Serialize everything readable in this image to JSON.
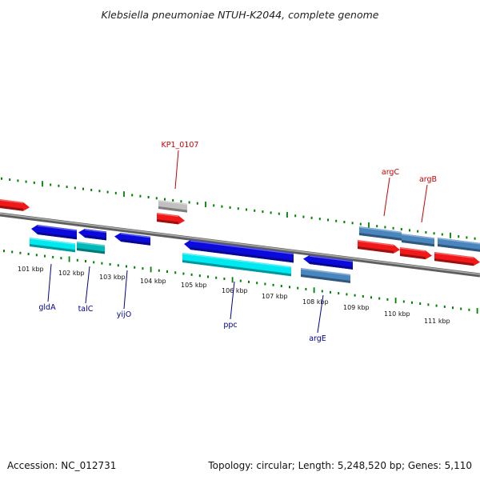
{
  "title": "Klebsiella pneumoniae NTUH-K2044, complete genome",
  "footer": {
    "accession": "Accession: NC_012731",
    "summary": "Topology: circular; Length: 5,248,520 bp; Genes: 5,110"
  },
  "colors": {
    "backbone": "#808080",
    "ticks": "#008000",
    "gene_blue": "#0a0adc",
    "gene_cyan": "#00e8f0",
    "gene_teal": "#00b8b8",
    "gene_steel": "#4a86be",
    "gene_red": "#f01818",
    "gene_gray": "#c0c0c0",
    "label_blue": "#00008b",
    "label_red": "#cc0000"
  },
  "kbp_labels": [
    "101 kbp",
    "102 kbp",
    "103 kbp",
    "104 kbp",
    "105 kbp",
    "106 kbp",
    "107 kbp",
    "108 kbp",
    "109 kbp",
    "110 kbp",
    "111 kbp"
  ],
  "gene_labels_below": [
    "gldA",
    "talC",
    "yijO",
    "ppc",
    "argE"
  ],
  "gene_labels_above": [
    "KP1_0107",
    "argC",
    "argB"
  ]
}
